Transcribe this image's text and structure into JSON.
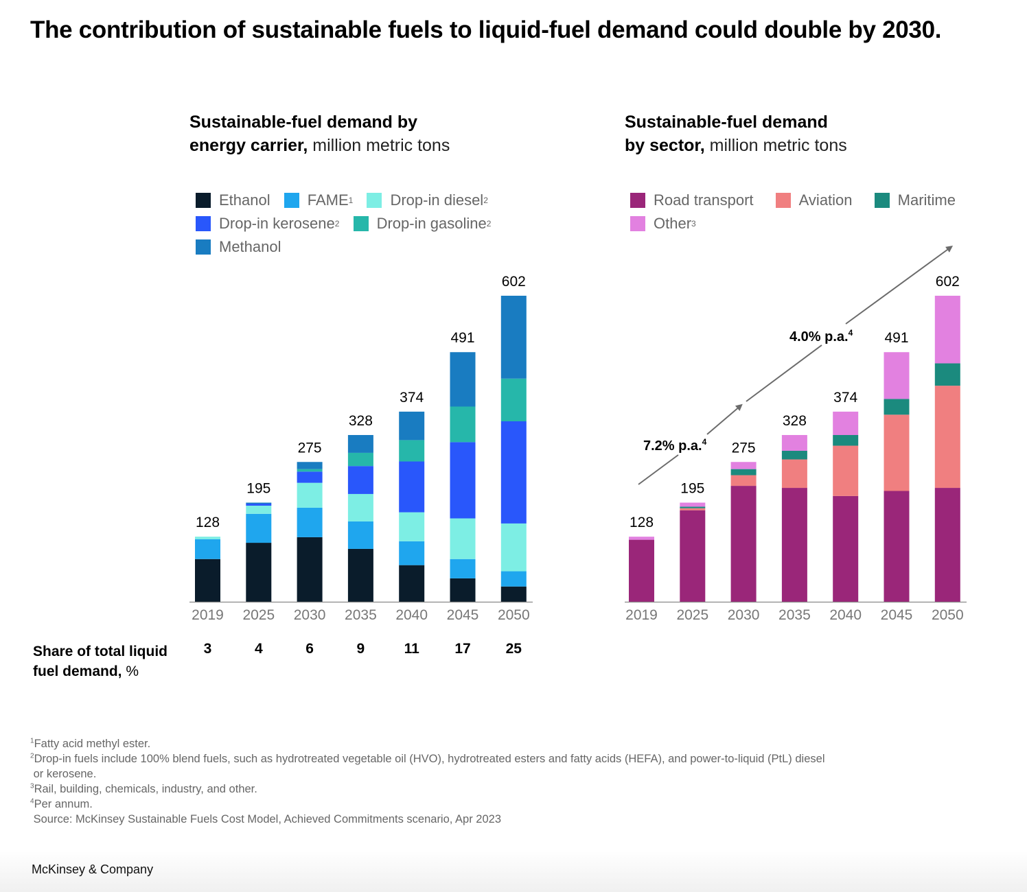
{
  "title": "The contribution of sustainable fuels to liquid-fuel demand could double by 2030.",
  "left_panel": {
    "subtitle_bold_1": "Sustainable-fuel demand by",
    "subtitle_bold_2": "energy carrier,",
    "subtitle_unit": " million metric tons"
  },
  "right_panel": {
    "subtitle_bold_1": "Sustainable-fuel demand",
    "subtitle_bold_2": "by sector,",
    "subtitle_unit": " million metric tons"
  },
  "share_row": {
    "label_bold": "Share of total liquid fuel demand,",
    "label_unit": " %",
    "values": [
      "3",
      "4",
      "6",
      "9",
      "11",
      "17",
      "25"
    ]
  },
  "chart_data": [
    {
      "type": "bar",
      "stacked": true,
      "title": "Sustainable-fuel demand by energy carrier, million metric tons",
      "xlabel": "",
      "ylabel": "million metric tons",
      "ylim": [
        0,
        602
      ],
      "grid": false,
      "legend_position": "top-left",
      "categories": [
        "2019",
        "2025",
        "2030",
        "2035",
        "2040",
        "2045",
        "2050"
      ],
      "totals": [
        "128",
        "195",
        "275",
        "328",
        "374",
        "491",
        "602"
      ],
      "series": [
        {
          "name": "Ethanol",
          "sup": "",
          "color": "#0a1c2b",
          "values": [
            84,
            116,
            127,
            104,
            72,
            46,
            30
          ]
        },
        {
          "name": "FAME",
          "sup": "1",
          "color": "#1fa6ee",
          "values": [
            39,
            57,
            58,
            54,
            47,
            38,
            30
          ]
        },
        {
          "name": "Drop-in diesel",
          "sup": "2",
          "color": "#7deee4",
          "values": [
            5,
            16,
            49,
            54,
            57,
            80,
            94
          ]
        },
        {
          "name": "Drop-in kerosene",
          "sup": "2",
          "color": "#2957fb",
          "values": [
            0,
            4,
            22,
            55,
            100,
            150,
            201
          ]
        },
        {
          "name": "Drop-in gasoline",
          "sup": "2",
          "color": "#26b7aa",
          "values": [
            0,
            0,
            5,
            26,
            42,
            70,
            84
          ]
        },
        {
          "name": "Methanol",
          "sup": "",
          "color": "#197cc1",
          "values": [
            0,
            2,
            14,
            35,
            56,
            107,
            163
          ]
        }
      ]
    },
    {
      "type": "bar",
      "stacked": true,
      "title": "Sustainable-fuel demand by sector, million metric tons",
      "xlabel": "",
      "ylabel": "million metric tons",
      "ylim": [
        0,
        602
      ],
      "grid": false,
      "legend_position": "top-left",
      "categories": [
        "2019",
        "2025",
        "2030",
        "2035",
        "2040",
        "2045",
        "2050"
      ],
      "totals": [
        "128",
        "195",
        "275",
        "328",
        "374",
        "491",
        "602"
      ],
      "series": [
        {
          "name": "Road transport",
          "sup": "",
          "color": "#9a2679",
          "values": [
            122,
            180,
            228,
            224,
            208,
            218,
            224
          ]
        },
        {
          "name": "Aviation",
          "sup": "",
          "color": "#f07f80",
          "values": [
            0,
            4,
            21,
            56,
            99,
            150,
            201
          ]
        },
        {
          "name": "Maritime",
          "sup": "",
          "color": "#1b8a7e",
          "values": [
            0,
            3,
            12,
            17,
            21,
            31,
            44
          ]
        },
        {
          "name": "Other",
          "sup": "3",
          "color": "#e281e0",
          "values": [
            6,
            8,
            14,
            31,
            46,
            92,
            133
          ]
        }
      ],
      "annotations": [
        {
          "text": "7.2% p.a.",
          "sup": "4",
          "from": "2019",
          "to": "2030"
        },
        {
          "text": "4.0% p.a.",
          "sup": "4",
          "from": "2030",
          "to": "2050"
        }
      ]
    }
  ],
  "footnotes": [
    {
      "sup": "1",
      "text": "Fatty acid methyl ester."
    },
    {
      "sup": "2",
      "text": "Drop-in fuels include 100% blend fuels, such as hydrotreated vegetable oil (HVO), hydrotreated esters and fatty acids (HEFA), and power-to-liquid (PtL) diesel\n or kerosene."
    },
    {
      "sup": "3",
      "text": "Rail, building, chemicals, industry, and other."
    },
    {
      "sup": "4",
      "text": "Per annum."
    },
    {
      "sup": "",
      "text": " Source: McKinsey Sustainable Fuels Cost Model, Achieved Commitments scenario, Apr 2023"
    }
  ],
  "brand": "McKinsey & Company"
}
